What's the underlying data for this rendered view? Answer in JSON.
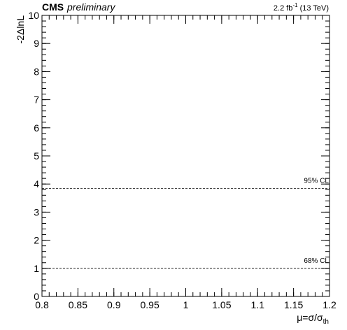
{
  "header": {
    "experiment": "CMS",
    "status": "preliminary",
    "lumi_value": "2.2 fb",
    "lumi_exponent": "-1",
    "lumi_energy": " (13 TeV)"
  },
  "chart_data": {
    "type": "line",
    "title": "",
    "xlabel": {
      "prefix": "μ=σ/σ",
      "subscript": "th"
    },
    "ylabel": "-2ΔlnL",
    "xlim": [
      0.8,
      1.2
    ],
    "ylim": [
      0,
      10
    ],
    "x_ticks": [
      0.8,
      0.85,
      0.9,
      0.95,
      1,
      1.05,
      1.1,
      1.15,
      1.2
    ],
    "x_tick_labels": [
      "0.8",
      "0.85",
      "0.9",
      "0.95",
      "1",
      "1.05",
      "1.1",
      "1.15",
      "1.2"
    ],
    "y_ticks": [
      0,
      1,
      2,
      3,
      4,
      5,
      6,
      7,
      8,
      9,
      10
    ],
    "y_tick_labels": [
      "0",
      "1",
      "2",
      "3",
      "4",
      "5",
      "6",
      "7",
      "8",
      "9",
      "10"
    ],
    "x_minor_step": 0.01,
    "y_minor_step": 0.2,
    "grid": false,
    "series": [],
    "reference_lines": [
      {
        "label": "68% CL",
        "y": 1.0,
        "style": "dashed"
      },
      {
        "label": "95% CL",
        "y": 3.84,
        "style": "dashed"
      }
    ]
  }
}
